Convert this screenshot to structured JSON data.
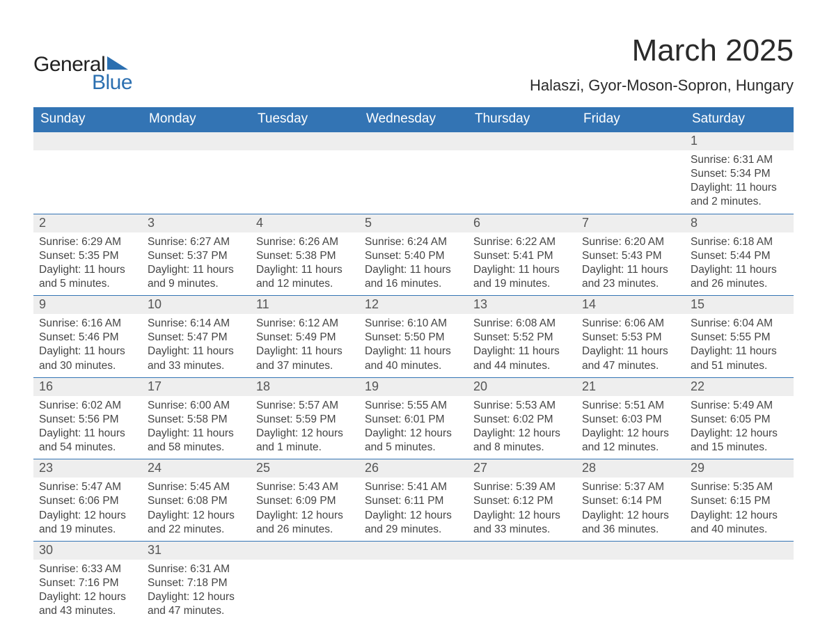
{
  "brand": {
    "part1": "General",
    "part2": "Blue",
    "shape_color": "#2b6fb0"
  },
  "title": "March 2025",
  "location": "Halaszi, Gyor-Moson-Sopron, Hungary",
  "colors": {
    "header_bg": "#3374b4",
    "header_text": "#ffffff",
    "daynum_bg": "#eeeeee",
    "row_divider": "#3374b4",
    "body_text": "#444444"
  },
  "weekdays": [
    "Sunday",
    "Monday",
    "Tuesday",
    "Wednesday",
    "Thursday",
    "Friday",
    "Saturday"
  ],
  "weeks": [
    [
      null,
      null,
      null,
      null,
      null,
      null,
      {
        "n": "1",
        "sr": "6:31 AM",
        "ss": "5:34 PM",
        "dl": "11 hours and 2 minutes."
      }
    ],
    [
      {
        "n": "2",
        "sr": "6:29 AM",
        "ss": "5:35 PM",
        "dl": "11 hours and 5 minutes."
      },
      {
        "n": "3",
        "sr": "6:27 AM",
        "ss": "5:37 PM",
        "dl": "11 hours and 9 minutes."
      },
      {
        "n": "4",
        "sr": "6:26 AM",
        "ss": "5:38 PM",
        "dl": "11 hours and 12 minutes."
      },
      {
        "n": "5",
        "sr": "6:24 AM",
        "ss": "5:40 PM",
        "dl": "11 hours and 16 minutes."
      },
      {
        "n": "6",
        "sr": "6:22 AM",
        "ss": "5:41 PM",
        "dl": "11 hours and 19 minutes."
      },
      {
        "n": "7",
        "sr": "6:20 AM",
        "ss": "5:43 PM",
        "dl": "11 hours and 23 minutes."
      },
      {
        "n": "8",
        "sr": "6:18 AM",
        "ss": "5:44 PM",
        "dl": "11 hours and 26 minutes."
      }
    ],
    [
      {
        "n": "9",
        "sr": "6:16 AM",
        "ss": "5:46 PM",
        "dl": "11 hours and 30 minutes."
      },
      {
        "n": "10",
        "sr": "6:14 AM",
        "ss": "5:47 PM",
        "dl": "11 hours and 33 minutes."
      },
      {
        "n": "11",
        "sr": "6:12 AM",
        "ss": "5:49 PM",
        "dl": "11 hours and 37 minutes."
      },
      {
        "n": "12",
        "sr": "6:10 AM",
        "ss": "5:50 PM",
        "dl": "11 hours and 40 minutes."
      },
      {
        "n": "13",
        "sr": "6:08 AM",
        "ss": "5:52 PM",
        "dl": "11 hours and 44 minutes."
      },
      {
        "n": "14",
        "sr": "6:06 AM",
        "ss": "5:53 PM",
        "dl": "11 hours and 47 minutes."
      },
      {
        "n": "15",
        "sr": "6:04 AM",
        "ss": "5:55 PM",
        "dl": "11 hours and 51 minutes."
      }
    ],
    [
      {
        "n": "16",
        "sr": "6:02 AM",
        "ss": "5:56 PM",
        "dl": "11 hours and 54 minutes."
      },
      {
        "n": "17",
        "sr": "6:00 AM",
        "ss": "5:58 PM",
        "dl": "11 hours and 58 minutes."
      },
      {
        "n": "18",
        "sr": "5:57 AM",
        "ss": "5:59 PM",
        "dl": "12 hours and 1 minute."
      },
      {
        "n": "19",
        "sr": "5:55 AM",
        "ss": "6:01 PM",
        "dl": "12 hours and 5 minutes."
      },
      {
        "n": "20",
        "sr": "5:53 AM",
        "ss": "6:02 PM",
        "dl": "12 hours and 8 minutes."
      },
      {
        "n": "21",
        "sr": "5:51 AM",
        "ss": "6:03 PM",
        "dl": "12 hours and 12 minutes."
      },
      {
        "n": "22",
        "sr": "5:49 AM",
        "ss": "6:05 PM",
        "dl": "12 hours and 15 minutes."
      }
    ],
    [
      {
        "n": "23",
        "sr": "5:47 AM",
        "ss": "6:06 PM",
        "dl": "12 hours and 19 minutes."
      },
      {
        "n": "24",
        "sr": "5:45 AM",
        "ss": "6:08 PM",
        "dl": "12 hours and 22 minutes."
      },
      {
        "n": "25",
        "sr": "5:43 AM",
        "ss": "6:09 PM",
        "dl": "12 hours and 26 minutes."
      },
      {
        "n": "26",
        "sr": "5:41 AM",
        "ss": "6:11 PM",
        "dl": "12 hours and 29 minutes."
      },
      {
        "n": "27",
        "sr": "5:39 AM",
        "ss": "6:12 PM",
        "dl": "12 hours and 33 minutes."
      },
      {
        "n": "28",
        "sr": "5:37 AM",
        "ss": "6:14 PM",
        "dl": "12 hours and 36 minutes."
      },
      {
        "n": "29",
        "sr": "5:35 AM",
        "ss": "6:15 PM",
        "dl": "12 hours and 40 minutes."
      }
    ],
    [
      {
        "n": "30",
        "sr": "6:33 AM",
        "ss": "7:16 PM",
        "dl": "12 hours and 43 minutes."
      },
      {
        "n": "31",
        "sr": "6:31 AM",
        "ss": "7:18 PM",
        "dl": "12 hours and 47 minutes."
      },
      null,
      null,
      null,
      null,
      null
    ]
  ],
  "labels": {
    "sunrise": "Sunrise: ",
    "sunset": "Sunset: ",
    "daylight": "Daylight: "
  }
}
